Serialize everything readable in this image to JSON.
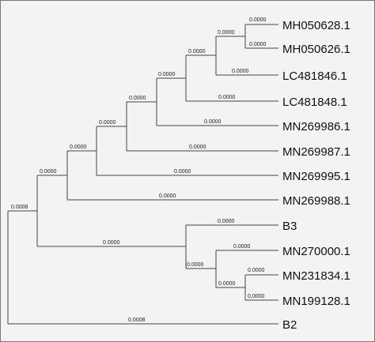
{
  "tree": {
    "taxa": [
      {
        "id": "MH050628",
        "label": "MH050628.1"
      },
      {
        "id": "MH050626",
        "label": "MH050626.1"
      },
      {
        "id": "LC481846",
        "label": "LC481846.1"
      },
      {
        "id": "LC481848",
        "label": "LC481848.1"
      },
      {
        "id": "MN269986",
        "label": "MN269986.1"
      },
      {
        "id": "MN269987",
        "label": "MN269987.1"
      },
      {
        "id": "MN269995",
        "label": "MN269995.1"
      },
      {
        "id": "MN269988",
        "label": "MN269988.1"
      },
      {
        "id": "B3",
        "label": "B3"
      },
      {
        "id": "MN270000",
        "label": "MN270000.1"
      },
      {
        "id": "MN231834",
        "label": "MN231834.1"
      },
      {
        "id": "MN199128",
        "label": "MN199128.1"
      },
      {
        "id": "B2",
        "label": "B2"
      }
    ],
    "branch_lengths": {
      "MH050628": "0.0000",
      "MH050626": "0.0000",
      "node_mh": "0.0000",
      "LC481846": "0.0000",
      "node_lc846": "0.0000",
      "LC481848": "0.0000",
      "node_lc848": "0.0000",
      "MN269986": "0.0000",
      "node_986": "0.0000",
      "MN269987": "0.0000",
      "node_987": "0.0000",
      "MN269995": "0.0000",
      "node_995": "0.0000",
      "MN269988": "0.0000",
      "root_upper": "0.0008",
      "B3": "0.0000",
      "node_b3_lower": "0.0000",
      "MN270000": "0.0000",
      "node_mn_pair": "0.0000",
      "MN231834": "0.0000",
      "MN199128": "0.0000",
      "B2": "0.0008"
    }
  }
}
